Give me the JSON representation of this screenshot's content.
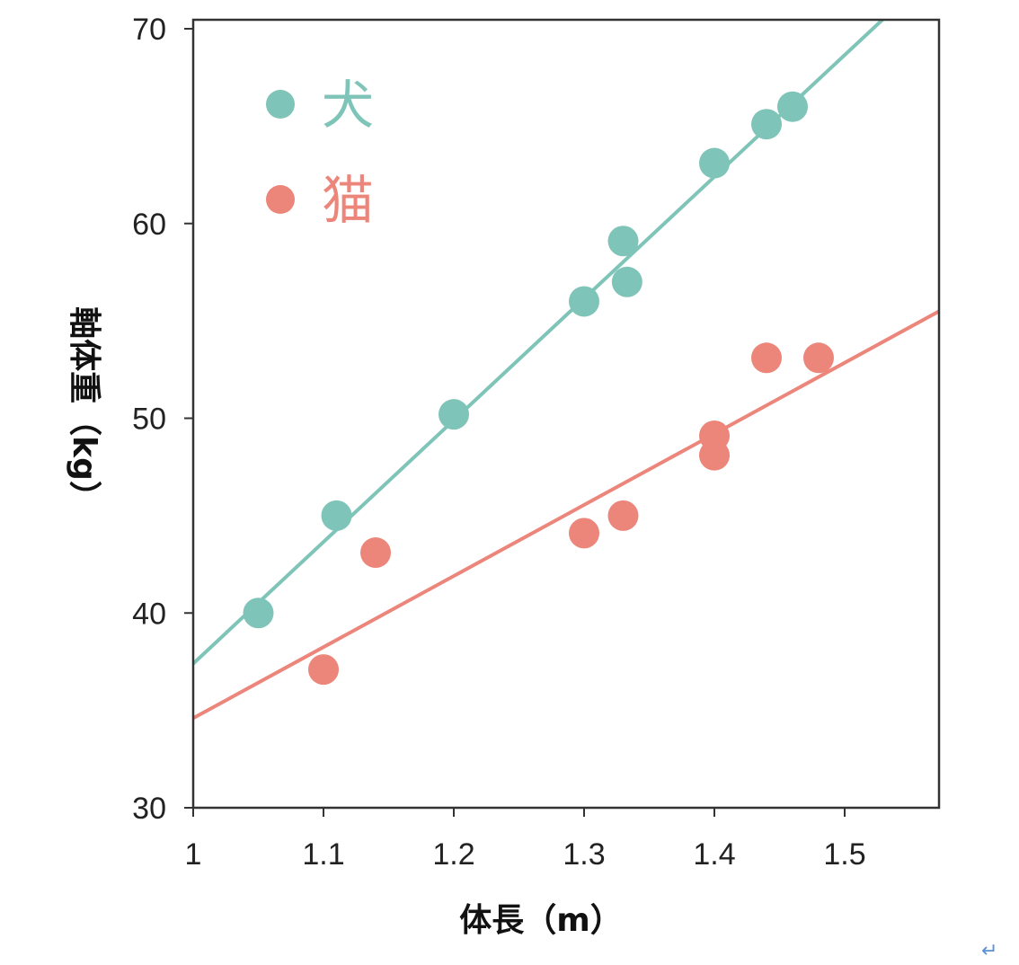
{
  "chart_data": {
    "type": "scatter",
    "xlabel": "体長（m）",
    "ylabel": "軸体重（kg）",
    "xlim": [
      1,
      1.57
    ],
    "ylim": [
      30,
      70
    ],
    "x_ticks": [
      "1",
      "1.1",
      "1.2",
      "1.3",
      "1.4",
      "1.5"
    ],
    "y_ticks": [
      "30",
      "40",
      "50",
      "60",
      "70"
    ],
    "legend_position": "top-left",
    "grid": false,
    "series": [
      {
        "name": "犬",
        "color": "#7fc4b8",
        "points": [
          [
            1.05,
            40
          ],
          [
            1.11,
            45
          ],
          [
            1.2,
            50.2
          ],
          [
            1.3,
            56
          ],
          [
            1.33,
            59.1
          ],
          [
            1.333,
            57
          ],
          [
            1.4,
            63.1
          ],
          [
            1.44,
            65.1
          ],
          [
            1.46,
            66
          ]
        ],
        "trend": {
          "slope": 62.5,
          "intercept": -25.1
        }
      },
      {
        "name": "猫",
        "color": "#ec857a",
        "points": [
          [
            1.1,
            37.1
          ],
          [
            1.14,
            43.1
          ],
          [
            1.3,
            44.1
          ],
          [
            1.33,
            45
          ],
          [
            1.4,
            49.1
          ],
          [
            1.4,
            48.1
          ],
          [
            1.44,
            53.1
          ],
          [
            1.48,
            53.1
          ]
        ],
        "trend": {
          "slope": 36.5,
          "intercept": -1.9
        }
      }
    ]
  },
  "ui": {
    "return_glyph": "↵"
  }
}
